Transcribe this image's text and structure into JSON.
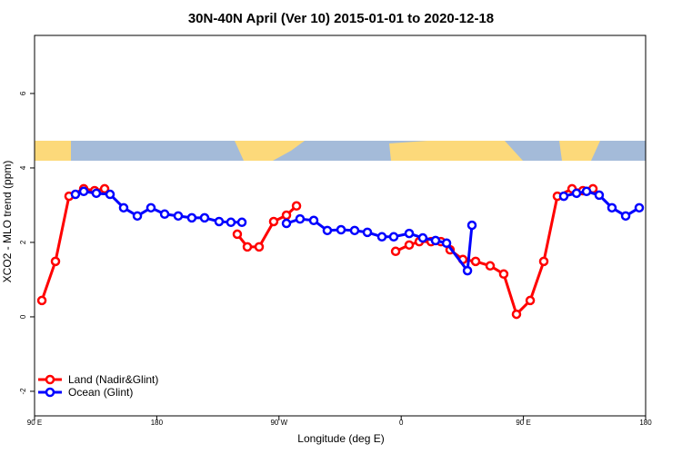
{
  "chart_data": {
    "type": "line",
    "title": "30N-40N April (Ver 10)   2015-01-01 to 2020-12-18",
    "x_label": "Longitude (deg E)",
    "y_label": "XCO2 - MLO trend (ppm)",
    "xlim": [
      90,
      540
    ],
    "xticks": [
      {
        "value": 90,
        "label": "90 E"
      },
      180,
      {
        "value": 270,
        "label": "90 W"
      },
      {
        "value": 360,
        "label": "0"
      },
      {
        "value": 450,
        "label": "90 E"
      },
      {
        "value": 540,
        "label": "180"
      }
    ],
    "ylim": [
      -2.66,
      7.56
    ],
    "yticks": [
      -2,
      0,
      2,
      4,
      6
    ],
    "legend": "bottom-left",
    "series": [
      {
        "name": "Land (Nadir&Glint)",
        "color": "#ff0000",
        "x": [
          95.4,
          105.4,
          115.4,
          126.2,
          134.2,
          141.6,
          null,
          239.3,
          246.7,
          255.4,
          266.1,
          275.5,
          282.9,
          null,
          355.9,
          365.9,
          373.3,
          382.0,
          389.3,
          396.0,
          405.4,
          414.8,
          425.5,
          435.5,
          444.9,
          455.0,
          465.0,
          475.0,
          485.8,
          493.8,
          501.2
        ],
        "values": [
          0.44,
          1.49,
          3.24,
          3.44,
          3.39,
          3.44,
          null,
          2.22,
          1.88,
          1.88,
          2.56,
          2.73,
          2.98,
          null,
          1.76,
          1.93,
          2.02,
          2.02,
          2.02,
          1.8,
          1.54,
          1.49,
          1.37,
          1.15,
          0.07,
          0.44,
          1.49,
          3.24,
          3.44,
          3.39,
          3.44
        ]
      },
      {
        "name": "Ocean (Glint)",
        "color": "#0000ff",
        "x": [
          120.1,
          126.2,
          135.5,
          145.6,
          155.6,
          165.7,
          175.7,
          185.8,
          195.8,
          205.8,
          215.2,
          225.9,
          234.6,
          242.7,
          null,
          275.5,
          285.5,
          295.6,
          305.6,
          315.7,
          325.7,
          335.1,
          345.8,
          354.5,
          365.9,
          375.9,
          385.3,
          393.4,
          408.8,
          412.1,
          null,
          479.7,
          489.1,
          496.5,
          505.8,
          515.2,
          525.3,
          535.3
        ],
        "values": [
          3.29,
          3.37,
          3.32,
          3.29,
          2.93,
          2.71,
          2.93,
          2.76,
          2.71,
          2.66,
          2.66,
          2.56,
          2.54,
          2.54,
          null,
          2.51,
          2.63,
          2.59,
          2.32,
          2.34,
          2.32,
          2.27,
          2.15,
          2.15,
          2.24,
          2.12,
          2.05,
          1.98,
          1.24,
          2.46,
          null,
          3.24,
          3.32,
          3.37,
          3.27,
          2.93,
          2.71,
          2.93
        ]
      }
    ]
  }
}
